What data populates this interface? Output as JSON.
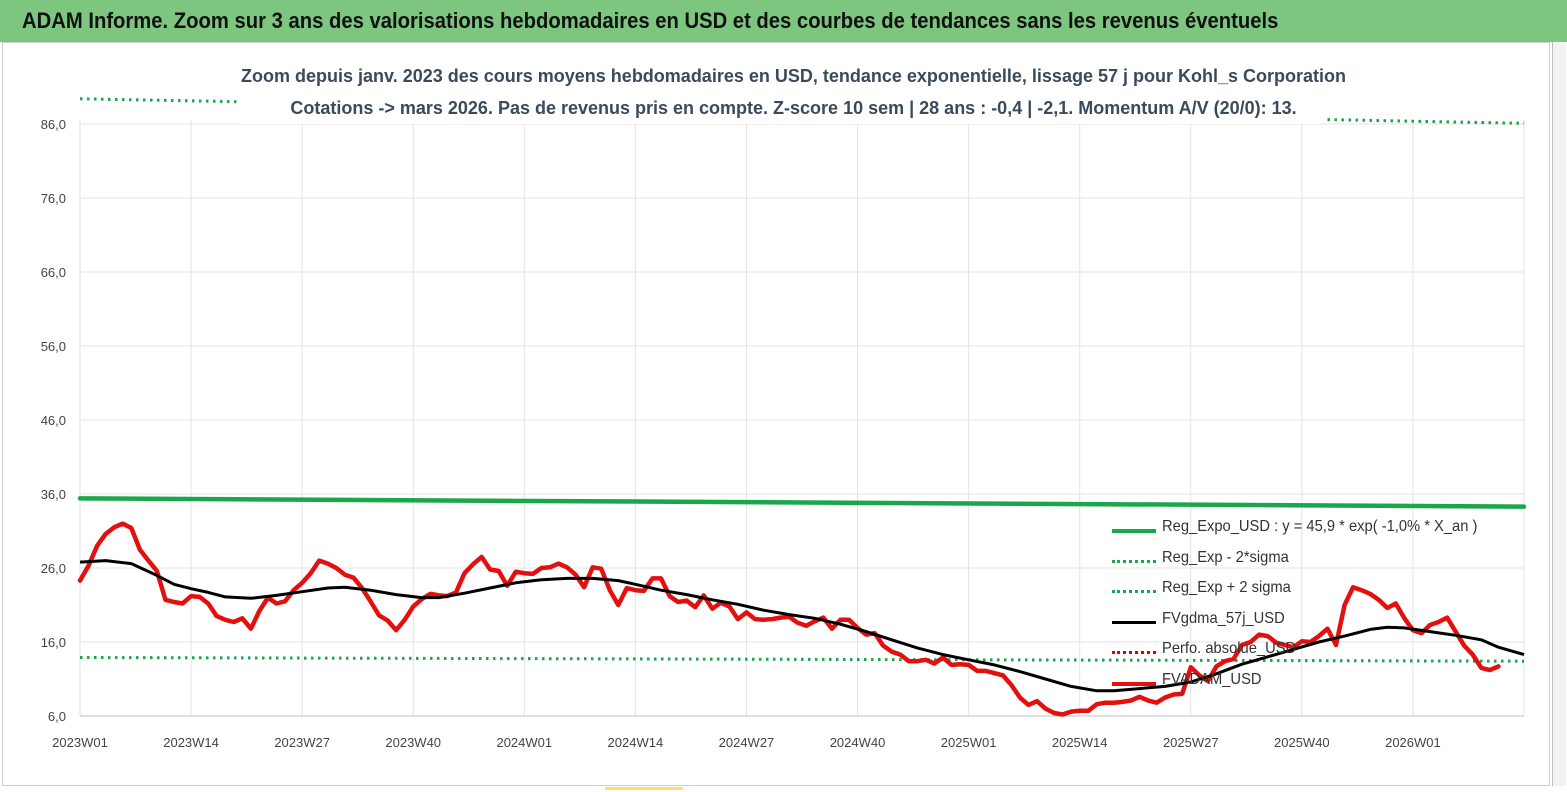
{
  "header": {
    "title": "ADAM Informe. Zoom sur 3 ans des valorisations hebdomadaires en USD et des courbes de tendances sans les revenus éventuels"
  },
  "chart_data": {
    "type": "line",
    "title": "Zoom depuis janv. 2023 des cours moyens hebdomadaires en USD, tendance exponentielle, lissage 57 j pour Kohl_s Corporation",
    "subtitle": "Cotations -> mars 2026. Pas de revenus pris en compte. Z-score 10 sem | 28 ans : -0,4 | -2,1. Momentum A/V (20/0): 13.",
    "xlabel": "",
    "ylabel": "",
    "ylim": [
      6,
      86
    ],
    "yticks": [
      "6,0",
      "16,0",
      "26,0",
      "36,0",
      "46,0",
      "56,0",
      "66,0",
      "76,0",
      "86,0"
    ],
    "xlim": [
      0,
      169
    ],
    "xticks": [
      {
        "x": 0,
        "label": "2023W01"
      },
      {
        "x": 13,
        "label": "2023W14"
      },
      {
        "x": 26,
        "label": "2023W27"
      },
      {
        "x": 39,
        "label": "2023W40"
      },
      {
        "x": 52,
        "label": "2024W01"
      },
      {
        "x": 65,
        "label": "2024W14"
      },
      {
        "x": 78,
        "label": "2024W27"
      },
      {
        "x": 91,
        "label": "2024W40"
      },
      {
        "x": 104,
        "label": "2025W01"
      },
      {
        "x": 117,
        "label": "2025W14"
      },
      {
        "x": 130,
        "label": "2025W27"
      },
      {
        "x": 143,
        "label": "2025W40"
      },
      {
        "x": 156,
        "label": "2026W01"
      }
    ],
    "grid": true,
    "legend_position": "bottom-right",
    "series": [
      {
        "name": "Reg_Expo_USD : y = 45,9 * exp( -1,0% *  X_an )",
        "color": "#1aa64a",
        "style": "solid-thick",
        "points": [
          [
            0,
            35.4
          ],
          [
            169,
            34.3
          ]
        ]
      },
      {
        "name": "Reg_Exp - 2*sigma",
        "color": "#1aa64a",
        "style": "dotted",
        "points": [
          [
            0,
            13.9
          ],
          [
            169,
            13.4
          ]
        ]
      },
      {
        "name": "Reg_Exp + 2 sigma",
        "color": "#1aa64a",
        "style": "dotted",
        "segments": [
          [
            [
              0,
              89.4
            ],
            [
              19,
              89.0
            ]
          ],
          [
            [
              146,
              86.6
            ],
            [
              169,
              86.1
            ]
          ]
        ]
      },
      {
        "name": "FVgdma_57j_USD",
        "color": "#000000",
        "style": "solid",
        "points": [
          [
            0,
            26.8
          ],
          [
            3,
            27.0
          ],
          [
            6,
            26.6
          ],
          [
            9,
            25.0
          ],
          [
            11,
            23.8
          ],
          [
            13,
            23.2
          ],
          [
            15,
            22.7
          ],
          [
            17,
            22.1
          ],
          [
            20,
            21.9
          ],
          [
            23,
            22.3
          ],
          [
            26,
            22.8
          ],
          [
            29,
            23.3
          ],
          [
            31,
            23.4
          ],
          [
            34,
            23.0
          ],
          [
            37,
            22.4
          ],
          [
            40,
            22.0
          ],
          [
            42,
            22.0
          ],
          [
            45,
            22.6
          ],
          [
            48,
            23.3
          ],
          [
            51,
            24.0
          ],
          [
            54,
            24.4
          ],
          [
            57,
            24.6
          ],
          [
            60,
            24.6
          ],
          [
            63,
            24.3
          ],
          [
            65,
            23.8
          ],
          [
            68,
            23.0
          ],
          [
            71,
            22.4
          ],
          [
            74,
            21.7
          ],
          [
            77,
            21.1
          ],
          [
            80,
            20.3
          ],
          [
            83,
            19.7
          ],
          [
            86,
            19.2
          ],
          [
            89,
            18.4
          ],
          [
            92,
            17.4
          ],
          [
            95,
            16.3
          ],
          [
            98,
            15.2
          ],
          [
            101,
            14.3
          ],
          [
            104,
            13.6
          ],
          [
            107,
            12.9
          ],
          [
            110,
            12.0
          ],
          [
            113,
            11.0
          ],
          [
            116,
            10.0
          ],
          [
            119,
            9.4
          ],
          [
            121,
            9.4
          ],
          [
            124,
            9.7
          ],
          [
            127,
            10.0
          ],
          [
            130,
            10.6
          ],
          [
            133,
            11.7
          ],
          [
            136,
            13.0
          ],
          [
            139,
            14.0
          ],
          [
            142,
            15.0
          ],
          [
            145,
            16.0
          ],
          [
            148,
            16.8
          ],
          [
            151,
            17.7
          ],
          [
            153,
            18.0
          ],
          [
            155,
            17.9
          ],
          [
            158,
            17.4
          ],
          [
            161,
            16.9
          ],
          [
            164,
            16.3
          ],
          [
            166,
            15.3
          ],
          [
            169,
            14.3
          ]
        ]
      },
      {
        "name": "Perfo. absolue_USD",
        "color": "#e00000",
        "style": "dotted",
        "points": []
      },
      {
        "name": "FVADAM_USD",
        "color": "#e31010",
        "style": "solid-thick",
        "points": [
          [
            0,
            24.3
          ],
          [
            1,
            26.3
          ],
          [
            2,
            29.0
          ],
          [
            3,
            30.6
          ],
          [
            4,
            31.5
          ],
          [
            5,
            32.0
          ],
          [
            6,
            31.4
          ],
          [
            7,
            28.5
          ],
          [
            8,
            27.0
          ],
          [
            9,
            25.6
          ],
          [
            10,
            21.7
          ],
          [
            11,
            21.4
          ],
          [
            12,
            21.2
          ],
          [
            13,
            22.2
          ],
          [
            14,
            22.1
          ],
          [
            15,
            21.2
          ],
          [
            16,
            19.5
          ],
          [
            17,
            19.0
          ],
          [
            18,
            18.7
          ],
          [
            19,
            19.2
          ],
          [
            20,
            17.8
          ],
          [
            21,
            20.2
          ],
          [
            22,
            22.0
          ],
          [
            23,
            21.2
          ],
          [
            24,
            21.5
          ],
          [
            25,
            23.0
          ],
          [
            26,
            24.0
          ],
          [
            27,
            25.3
          ],
          [
            28,
            27.0
          ],
          [
            29,
            26.6
          ],
          [
            30,
            26.0
          ],
          [
            31,
            25.1
          ],
          [
            32,
            24.7
          ],
          [
            33,
            23.3
          ],
          [
            34,
            21.5
          ],
          [
            35,
            19.6
          ],
          [
            36,
            18.9
          ],
          [
            37,
            17.6
          ],
          [
            38,
            19.0
          ],
          [
            39,
            20.8
          ],
          [
            40,
            21.8
          ],
          [
            41,
            22.5
          ],
          [
            42,
            22.3
          ],
          [
            43,
            22.2
          ],
          [
            44,
            22.7
          ],
          [
            45,
            25.3
          ],
          [
            46,
            26.5
          ],
          [
            47,
            27.5
          ],
          [
            48,
            25.8
          ],
          [
            49,
            25.6
          ],
          [
            50,
            23.6
          ],
          [
            51,
            25.5
          ],
          [
            52,
            25.3
          ],
          [
            53,
            25.2
          ],
          [
            54,
            26.0
          ],
          [
            55,
            26.1
          ],
          [
            56,
            26.6
          ],
          [
            57,
            26.1
          ],
          [
            58,
            25.1
          ],
          [
            59,
            23.4
          ],
          [
            60,
            26.1
          ],
          [
            61,
            25.9
          ],
          [
            62,
            23.0
          ],
          [
            63,
            21.0
          ],
          [
            64,
            23.3
          ],
          [
            65,
            23.0
          ],
          [
            66,
            22.9
          ],
          [
            67,
            24.6
          ],
          [
            68,
            24.6
          ],
          [
            69,
            22.2
          ],
          [
            70,
            21.4
          ],
          [
            71,
            21.6
          ],
          [
            72,
            20.7
          ],
          [
            73,
            22.3
          ],
          [
            74,
            20.5
          ],
          [
            75,
            21.3
          ],
          [
            76,
            20.8
          ],
          [
            77,
            19.1
          ],
          [
            78,
            20.0
          ],
          [
            79,
            19.1
          ],
          [
            80,
            19.0
          ],
          [
            81,
            19.1
          ],
          [
            82,
            19.3
          ],
          [
            83,
            19.4
          ],
          [
            84,
            18.6
          ],
          [
            85,
            18.2
          ],
          [
            86,
            18.8
          ],
          [
            87,
            19.3
          ],
          [
            88,
            17.8
          ],
          [
            89,
            19.0
          ],
          [
            90,
            19.0
          ],
          [
            91,
            17.9
          ],
          [
            92,
            17.0
          ],
          [
            93,
            17.2
          ],
          [
            94,
            15.5
          ],
          [
            95,
            14.7
          ],
          [
            96,
            14.3
          ],
          [
            97,
            13.4
          ],
          [
            98,
            13.4
          ],
          [
            99,
            13.6
          ],
          [
            100,
            13.1
          ],
          [
            101,
            13.9
          ],
          [
            102,
            12.9
          ],
          [
            103,
            13.0
          ],
          [
            104,
            12.9
          ],
          [
            105,
            12.1
          ],
          [
            106,
            12.1
          ],
          [
            107,
            11.8
          ],
          [
            108,
            11.5
          ],
          [
            109,
            10.2
          ],
          [
            110,
            8.5
          ],
          [
            111,
            7.5
          ],
          [
            112,
            8.0
          ],
          [
            113,
            7.0
          ],
          [
            114,
            6.4
          ],
          [
            115,
            6.2
          ],
          [
            116,
            6.6
          ],
          [
            117,
            6.7
          ],
          [
            118,
            6.7
          ],
          [
            119,
            7.6
          ],
          [
            120,
            7.8
          ],
          [
            121,
            7.8
          ],
          [
            122,
            7.9
          ],
          [
            123,
            8.1
          ],
          [
            124,
            8.6
          ],
          [
            125,
            8.1
          ],
          [
            126,
            7.8
          ],
          [
            127,
            8.5
          ],
          [
            128,
            8.9
          ],
          [
            129,
            9.0
          ],
          [
            130,
            12.6
          ],
          [
            131,
            11.5
          ],
          [
            132,
            10.7
          ],
          [
            133,
            12.7
          ],
          [
            134,
            13.4
          ],
          [
            135,
            13.7
          ],
          [
            136,
            15.6
          ],
          [
            137,
            16.0
          ],
          [
            138,
            17.0
          ],
          [
            139,
            16.8
          ],
          [
            140,
            15.9
          ],
          [
            141,
            15.6
          ],
          [
            142,
            15.3
          ],
          [
            143,
            16.1
          ],
          [
            144,
            16.0
          ],
          [
            145,
            16.8
          ],
          [
            146,
            17.8
          ],
          [
            147,
            15.6
          ],
          [
            148,
            21.0
          ],
          [
            149,
            23.4
          ],
          [
            150,
            23.0
          ],
          [
            151,
            22.5
          ],
          [
            152,
            21.7
          ],
          [
            153,
            20.6
          ],
          [
            154,
            21.2
          ],
          [
            155,
            19.2
          ],
          [
            156,
            17.6
          ],
          [
            157,
            17.2
          ],
          [
            158,
            18.3
          ],
          [
            159,
            18.7
          ],
          [
            160,
            19.3
          ],
          [
            161,
            17.4
          ],
          [
            162,
            15.5
          ],
          [
            163,
            14.3
          ],
          [
            164,
            12.5
          ],
          [
            165,
            12.2
          ],
          [
            166,
            12.7
          ]
        ]
      }
    ]
  }
}
